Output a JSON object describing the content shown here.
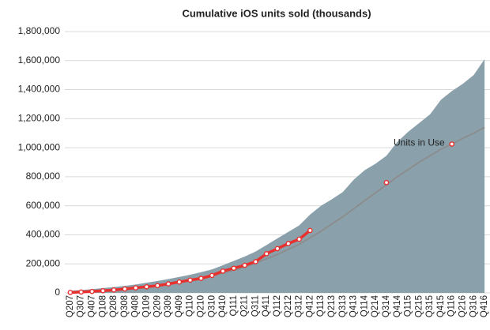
{
  "chart_data": {
    "type": "mixed",
    "title": "Cumulative iOS units sold (thousands)",
    "categories": [
      "Q207",
      "Q307",
      "Q407",
      "Q108",
      "Q208",
      "Q308",
      "Q408",
      "Q109",
      "Q209",
      "Q309",
      "Q409",
      "Q110",
      "Q210",
      "Q310",
      "Q410",
      "Q111",
      "Q211",
      "Q311",
      "Q411",
      "Q112",
      "Q212",
      "Q312",
      "Q412",
      "Q113",
      "Q213",
      "Q313",
      "Q413",
      "Q114",
      "Q214",
      "Q314",
      "Q414",
      "Q115",
      "Q215",
      "Q315",
      "Q415",
      "Q116",
      "Q216",
      "Q316",
      "Q416"
    ],
    "ylim": [
      0,
      1800000
    ],
    "yticks": [
      {
        "value": 0,
        "label": "0"
      },
      {
        "value": 200000,
        "label": "200,000"
      },
      {
        "value": 400000,
        "label": "400,000"
      },
      {
        "value": 600000,
        "label": "600,000"
      },
      {
        "value": 800000,
        "label": "800,000"
      },
      {
        "value": 1000000,
        "label": "1,000,000"
      },
      {
        "value": 1200000,
        "label": "1,200,000"
      },
      {
        "value": 1400000,
        "label": "1,400,000"
      },
      {
        "value": 1600000,
        "label": "1,600,000"
      },
      {
        "value": 1800000,
        "label": "1,800,000"
      }
    ],
    "grid": true,
    "series": [
      {
        "kind": "area",
        "color": "#8aa0ab",
        "values": [
          15000,
          20000,
          26000,
          33000,
          40000,
          48000,
          58000,
          70000,
          82000,
          95000,
          110000,
          125000,
          143000,
          162000,
          190000,
          220000,
          250000,
          285000,
          330000,
          375000,
          420000,
          465000,
          540000,
          600000,
          645000,
          695000,
          780000,
          845000,
          890000,
          945000,
          1040000,
          1110000,
          1170000,
          1230000,
          1330000,
          1390000,
          1440000,
          1500000,
          1610000
        ]
      },
      {
        "kind": "line",
        "name": "Units in Use",
        "color": "#8c8c8c",
        "values": [
          5000,
          8000,
          12000,
          17000,
          22000,
          28000,
          35000,
          43000,
          52000,
          62000,
          74000,
          87000,
          102000,
          118000,
          136000,
          156000,
          180000,
          205000,
          235000,
          265000,
          300000,
          335000,
          380000,
          425000,
          475000,
          525000,
          580000,
          635000,
          690000,
          745000,
          800000,
          850000,
          900000,
          945000,
          990000,
          1025000,
          1065000,
          1100000,
          1140000
        ]
      },
      {
        "kind": "points",
        "color": "#e8302e",
        "values": [
          3000,
          6000,
          10000,
          15000,
          20000,
          27000,
          35000,
          42000,
          50000,
          62000,
          75000,
          88000,
          100000,
          120000,
          150000,
          170000,
          190000,
          215000,
          270000,
          305000,
          340000,
          370000,
          430000,
          null,
          null,
          null,
          null,
          null,
          null,
          760000,
          null,
          null,
          null,
          null,
          null,
          1025000,
          null,
          null,
          null
        ]
      }
    ]
  }
}
